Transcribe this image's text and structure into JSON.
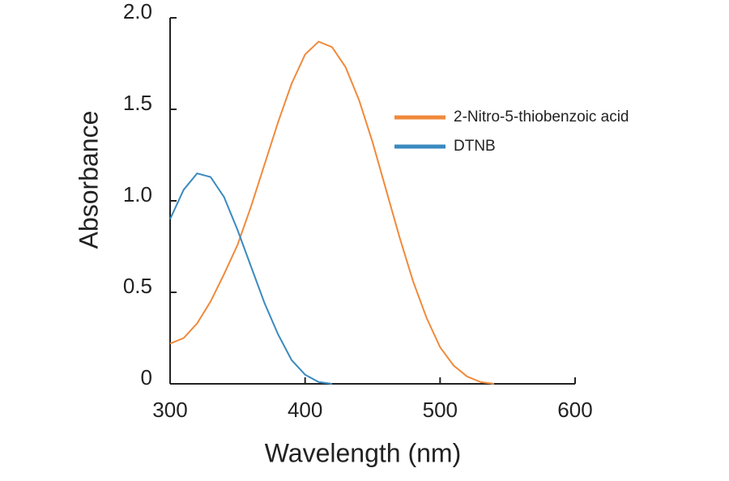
{
  "chart_data": {
    "type": "line",
    "x_label": "Wavelength (nm)",
    "y_label": "Absorbance",
    "x": [
      300,
      310,
      320,
      330,
      340,
      350,
      360,
      370,
      380,
      390,
      400,
      410,
      420,
      430,
      440,
      450,
      460,
      470,
      480,
      490,
      500,
      510,
      520,
      530,
      540
    ],
    "series": [
      {
        "name": "2-Nitro-5-thiobenzoic acid",
        "color": "#f08a3c",
        "values": [
          0.22,
          0.25,
          0.33,
          0.45,
          0.6,
          0.76,
          0.97,
          1.2,
          1.43,
          1.64,
          1.8,
          1.87,
          1.84,
          1.73,
          1.55,
          1.32,
          1.06,
          0.8,
          0.56,
          0.36,
          0.2,
          0.1,
          0.04,
          0.01,
          0
        ]
      },
      {
        "name": "DTNB",
        "color": "#3a8abf",
        "values": [
          0.9,
          1.06,
          1.15,
          1.13,
          1.02,
          0.84,
          0.64,
          0.44,
          0.27,
          0.13,
          0.05,
          0.01,
          0,
          null,
          null,
          null,
          null,
          null,
          null,
          null,
          null,
          null,
          null,
          null,
          null
        ]
      }
    ],
    "xlim": [
      300,
      600
    ],
    "xticks": [
      300,
      400,
      500,
      600
    ],
    "ylim": [
      0,
      2
    ],
    "yticks": [
      0,
      0.5,
      {
        "value": 1,
        "label": "1.0"
      },
      1.5,
      {
        "value": 2,
        "label": "2.0"
      }
    ],
    "legend": "upper right"
  }
}
